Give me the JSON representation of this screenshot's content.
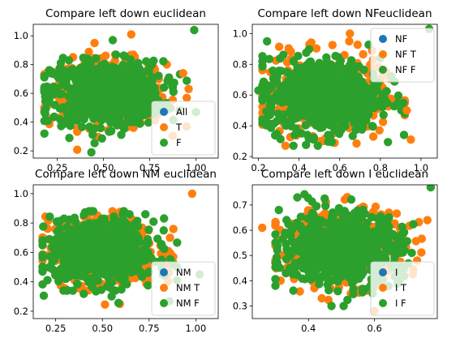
{
  "chart_data": [
    {
      "type": "scatter",
      "title": "Compare left down euclidean",
      "xlim": [
        0.12,
        1.12
      ],
      "ylim": [
        0.15,
        1.08
      ],
      "xticks": [
        0.25,
        0.5,
        0.75,
        1.0
      ],
      "xtick_labels": [
        "0.25",
        "0.50",
        "0.75",
        "1.00"
      ],
      "yticks": [
        0.2,
        0.4,
        0.6,
        0.8,
        1.0
      ],
      "ytick_labels": [
        "0.2",
        "0.4",
        "0.6",
        "0.8",
        "1.0"
      ],
      "legend_position": "lower-right",
      "series": [
        {
          "name": "All",
          "color": "#1f77b4"
        },
        {
          "name": "T",
          "color": "#ff7f0e"
        },
        {
          "name": "F",
          "color": "#2ca02c"
        }
      ],
      "cloud": {
        "center": [
          0.52,
          0.6
        ],
        "spread": [
          0.15,
          0.11
        ],
        "range_x": [
          0.18,
          0.95
        ],
        "range_y": [
          0.19,
          0.95
        ]
      },
      "outliers": [
        [
          0.65,
          1.01
        ],
        [
          0.99,
          1.04
        ],
        [
          0.96,
          0.63
        ],
        [
          1.0,
          0.47
        ],
        [
          0.93,
          0.74
        ],
        [
          0.55,
          0.97
        ]
      ]
    },
    {
      "type": "scatter",
      "title": "Compare left down NFeuclidean",
      "xlim": [
        0.17,
        1.08
      ],
      "ylim": [
        0.19,
        1.06
      ],
      "xticks": [
        0.2,
        0.4,
        0.6,
        0.8,
        1.0
      ],
      "xtick_labels": [
        "0.2",
        "0.4",
        "0.6",
        "0.8",
        "1.0"
      ],
      "yticks": [
        0.2,
        0.4,
        0.6,
        0.8,
        1.0
      ],
      "ytick_labels": [
        "0.2",
        "0.4",
        "0.6",
        "0.8",
        "1.0"
      ],
      "legend_position": "upper-right",
      "series": [
        {
          "name": "NF",
          "color": "#1f77b4"
        },
        {
          "name": "NF T",
          "color": "#ff7f0e"
        },
        {
          "name": "NF F",
          "color": "#2ca02c"
        }
      ],
      "cloud": {
        "center": [
          0.52,
          0.6
        ],
        "spread": [
          0.14,
          0.12
        ],
        "range_x": [
          0.22,
          0.92
        ],
        "range_y": [
          0.27,
          0.95
        ]
      },
      "outliers": [
        [
          0.65,
          1.0
        ],
        [
          1.04,
          1.03
        ],
        [
          0.95,
          0.31
        ],
        [
          0.2,
          0.63
        ],
        [
          0.93,
          0.5
        ]
      ]
    },
    {
      "type": "scatter",
      "title": "Compare left down NM euclidean",
      "xlim": [
        0.13,
        1.12
      ],
      "ylim": [
        0.15,
        1.06
      ],
      "xticks": [
        0.25,
        0.5,
        0.75,
        1.0
      ],
      "xtick_labels": [
        "0.25",
        "0.50",
        "0.75",
        "1.00"
      ],
      "yticks": [
        0.2,
        0.4,
        0.6,
        0.8,
        1.0
      ],
      "ytick_labels": [
        "0.2",
        "0.4",
        "0.6",
        "0.8",
        "1.0"
      ],
      "legend_position": "lower-right",
      "series": [
        {
          "name": "NM",
          "color": "#1f77b4"
        },
        {
          "name": "NM T",
          "color": "#ff7f0e"
        },
        {
          "name": "NM F",
          "color": "#2ca02c"
        }
      ],
      "cloud": {
        "center": [
          0.5,
          0.6
        ],
        "spread": [
          0.14,
          0.11
        ],
        "range_x": [
          0.18,
          0.9
        ],
        "range_y": [
          0.19,
          0.88
        ]
      },
      "outliers": [
        [
          0.98,
          1.0
        ],
        [
          1.02,
          0.45
        ],
        [
          0.88,
          0.76
        ],
        [
          0.73,
          0.86
        ]
      ]
    },
    {
      "type": "scatter",
      "title": "Compare left down I euclidean",
      "xlim": [
        0.23,
        0.79
      ],
      "ylim": [
        0.25,
        0.78
      ],
      "xticks": [
        0.4,
        0.6
      ],
      "xtick_labels": [
        "0.4",
        "0.6"
      ],
      "yticks": [
        0.3,
        0.4,
        0.5,
        0.6,
        0.7
      ],
      "ytick_labels": [
        "0.3",
        "0.4",
        "0.5",
        "0.6",
        "0.7"
      ],
      "legend_position": "lower-right",
      "series": [
        {
          "name": "I",
          "color": "#1f77b4"
        },
        {
          "name": "I T",
          "color": "#ff7f0e"
        },
        {
          "name": "I F",
          "color": "#2ca02c"
        }
      ],
      "cloud": {
        "center": [
          0.5,
          0.53
        ],
        "spread": [
          0.09,
          0.07
        ],
        "range_x": [
          0.3,
          0.76
        ],
        "range_y": [
          0.3,
          0.76
        ]
      },
      "outliers": [
        [
          0.26,
          0.61
        ],
        [
          0.77,
          0.77
        ],
        [
          0.76,
          0.64
        ],
        [
          0.3,
          0.38
        ],
        [
          0.6,
          0.28
        ]
      ]
    }
  ]
}
